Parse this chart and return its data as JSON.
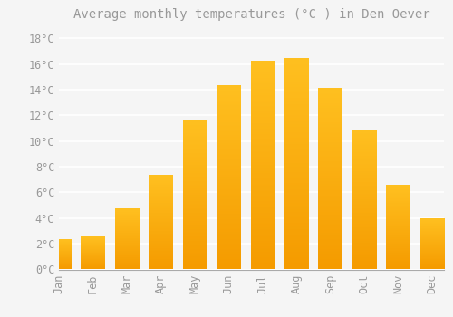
{
  "title": "Average monthly temperatures (°C ) in Den Oever",
  "months": [
    "Jan",
    "Feb",
    "Mar",
    "Apr",
    "May",
    "Jun",
    "Jul",
    "Aug",
    "Sep",
    "Oct",
    "Nov",
    "Dec"
  ],
  "temperatures": [
    2.3,
    2.5,
    4.7,
    7.3,
    11.5,
    14.3,
    16.2,
    16.4,
    14.1,
    10.8,
    6.5,
    3.9
  ],
  "bar_color": "#FFC020",
  "bar_color_bottom": "#F59B00",
  "background_color": "#F5F5F5",
  "grid_color": "#FFFFFF",
  "text_color": "#999999",
  "ylim": [
    0,
    19
  ],
  "yticks": [
    0,
    2,
    4,
    6,
    8,
    10,
    12,
    14,
    16,
    18
  ],
  "title_fontsize": 10,
  "tick_fontsize": 8.5
}
